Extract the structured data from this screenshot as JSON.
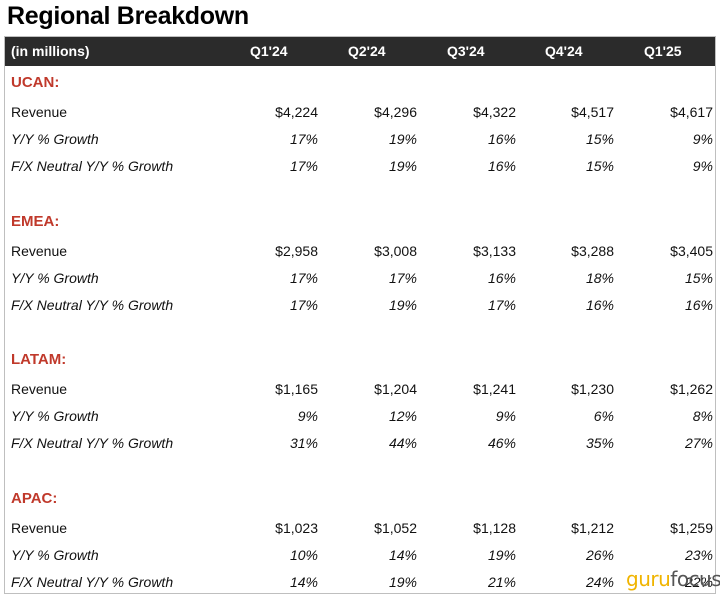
{
  "title": "Regional Breakdown",
  "header": {
    "unit_label": "(in millions)",
    "columns": [
      "Q1'24",
      "Q2'24",
      "Q3'24",
      "Q4'24",
      "Q1'25"
    ]
  },
  "colors": {
    "header_bg": "#2b2b2b",
    "section_title": "#c0392b",
    "logo_accent": "#f0b400"
  },
  "sections": [
    {
      "name": "UCAN:",
      "rows": [
        {
          "label": "Revenue",
          "values": [
            "$4,224",
            "$4,296",
            "$4,322",
            "$4,517",
            "$4,617"
          ]
        },
        {
          "label": "Y/Y % Growth",
          "values": [
            "17%",
            "19%",
            "16%",
            "15%",
            "9%"
          ]
        },
        {
          "label": "F/X Neutral Y/Y % Growth",
          "values": [
            "17%",
            "19%",
            "16%",
            "15%",
            "9%"
          ]
        }
      ]
    },
    {
      "name": "EMEA:",
      "rows": [
        {
          "label": "Revenue",
          "values": [
            "$2,958",
            "$3,008",
            "$3,133",
            "$3,288",
            "$3,405"
          ]
        },
        {
          "label": "Y/Y % Growth",
          "values": [
            "17%",
            "17%",
            "16%",
            "18%",
            "15%"
          ]
        },
        {
          "label": "F/X Neutral Y/Y % Growth",
          "values": [
            "17%",
            "19%",
            "17%",
            "16%",
            "16%"
          ]
        }
      ]
    },
    {
      "name": "LATAM:",
      "rows": [
        {
          "label": "Revenue",
          "values": [
            "$1,165",
            "$1,204",
            "$1,241",
            "$1,230",
            "$1,262"
          ]
        },
        {
          "label": "Y/Y % Growth",
          "values": [
            "9%",
            "12%",
            "9%",
            "6%",
            "8%"
          ]
        },
        {
          "label": "F/X Neutral Y/Y % Growth",
          "values": [
            "31%",
            "44%",
            "46%",
            "35%",
            "27%"
          ]
        }
      ]
    },
    {
      "name": "APAC:",
      "rows": [
        {
          "label": "Revenue",
          "values": [
            "$1,023",
            "$1,052",
            "$1,128",
            "$1,212",
            "$1,259"
          ]
        },
        {
          "label": "Y/Y % Growth",
          "values": [
            "10%",
            "14%",
            "19%",
            "26%",
            "23%"
          ]
        },
        {
          "label": "F/X Neutral Y/Y % Growth",
          "values": [
            "14%",
            "19%",
            "21%",
            "24%",
            "22%"
          ]
        }
      ]
    }
  ],
  "watermark": {
    "part1": "guru",
    "part2": "focus"
  }
}
